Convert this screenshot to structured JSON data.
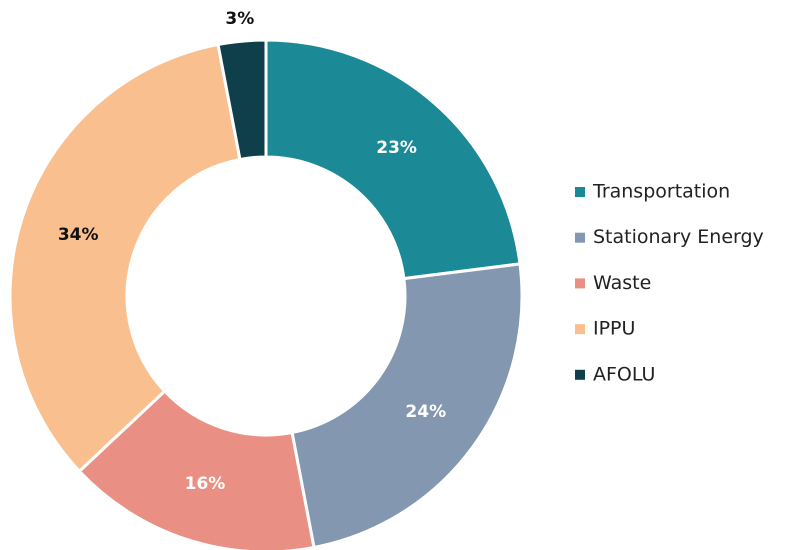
{
  "chart_data": {
    "type": "donut",
    "categories": [
      "Transportation",
      "Stationary Energy",
      "Waste",
      "IPPU",
      "AFOLU"
    ],
    "values": [
      23,
      24,
      16,
      34,
      3
    ],
    "value_labels": [
      "23%",
      "24%",
      "16%",
      "34%",
      "3%"
    ],
    "colors": [
      "#1b8a96",
      "#8497b0",
      "#ea8f84",
      "#f9bf8f",
      "#0e3f4a"
    ],
    "legend": "right"
  }
}
